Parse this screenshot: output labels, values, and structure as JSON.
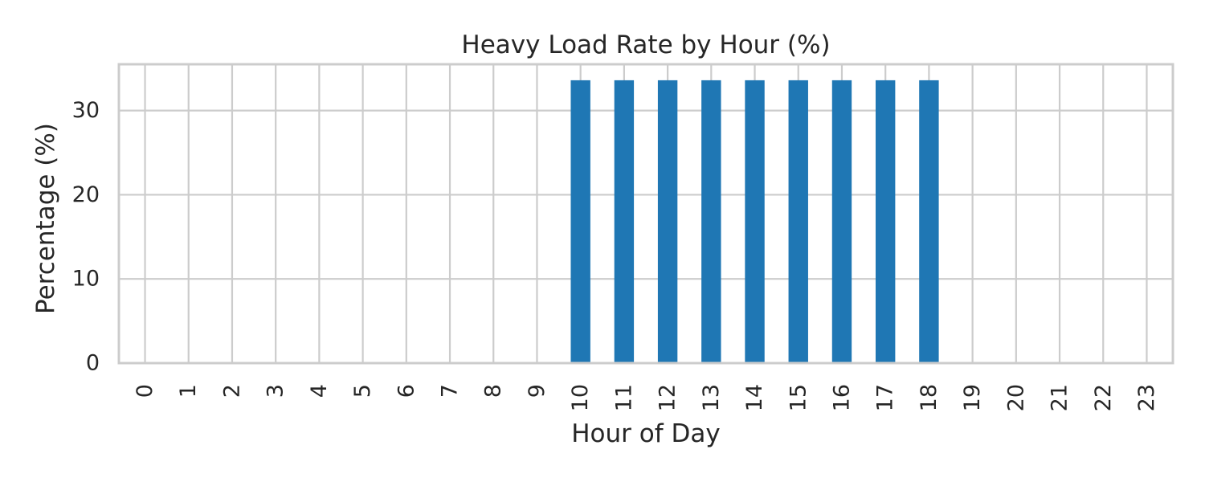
{
  "chart_data": {
    "type": "bar",
    "title": "Heavy Load Rate by Hour (%)",
    "xlabel": "Hour of Day",
    "ylabel": "Percentage (%)",
    "categories": [
      "0",
      "1",
      "2",
      "3",
      "4",
      "5",
      "6",
      "7",
      "8",
      "9",
      "10",
      "11",
      "12",
      "13",
      "14",
      "15",
      "16",
      "17",
      "18",
      "19",
      "20",
      "21",
      "22",
      "23"
    ],
    "values": [
      0,
      0,
      0,
      0,
      0,
      0,
      0,
      0,
      0,
      0,
      33.6,
      33.6,
      33.6,
      33.6,
      33.6,
      33.6,
      33.6,
      33.6,
      33.6,
      0,
      0,
      0,
      0,
      0
    ],
    "ylim": [
      0,
      35.5
    ],
    "yticks": [
      "0",
      "10",
      "20",
      "30"
    ],
    "grid": true,
    "bar_color": "#1f77b4",
    "grid_color": "#cccccc"
  }
}
